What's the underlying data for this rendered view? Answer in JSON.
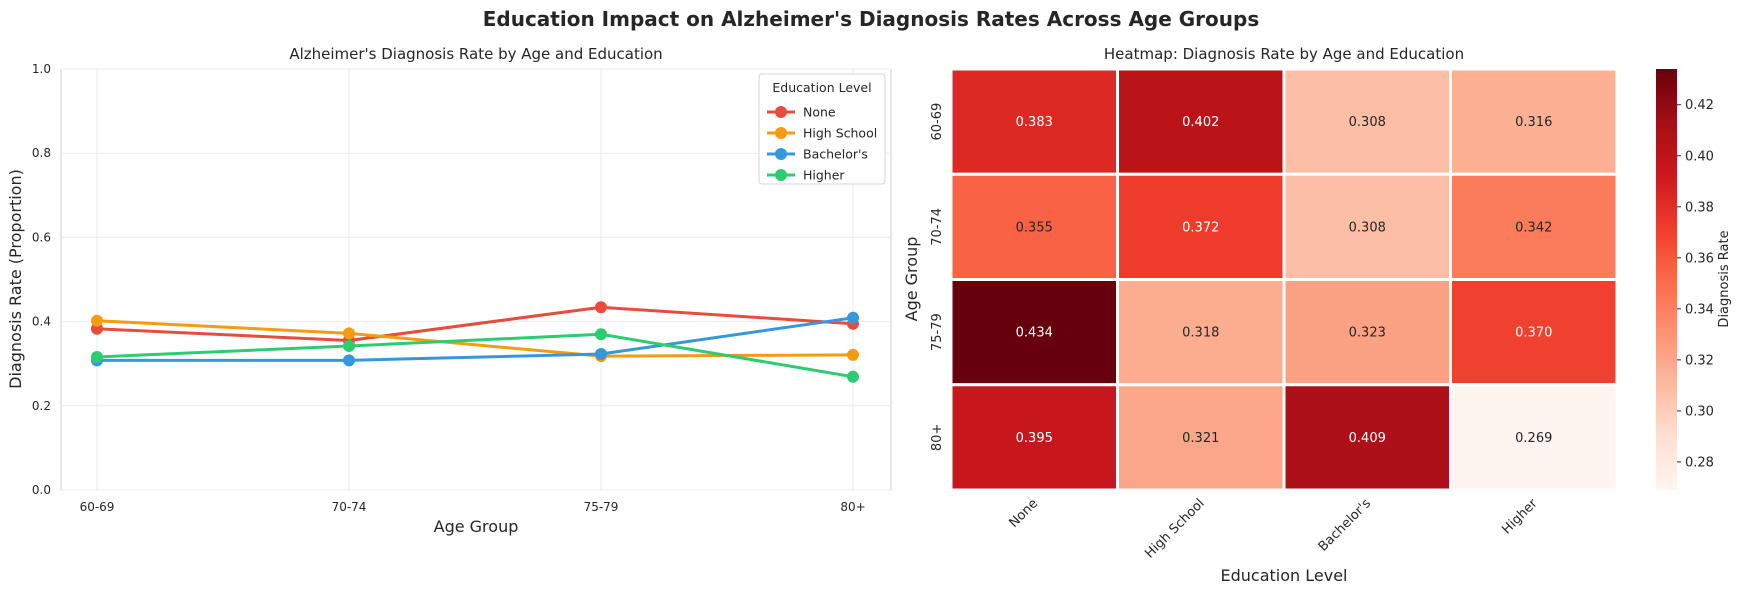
{
  "suptitle": "Education Impact on Alzheimer's Diagnosis Rates Across Age Groups",
  "chart_data": [
    {
      "type": "line",
      "title": "Alzheimer's Diagnosis Rate by Age and Education",
      "xlabel": "Age Group",
      "ylabel": "Diagnosis Rate (Proportion)",
      "categories": [
        "60-69",
        "70-74",
        "75-79",
        "80+"
      ],
      "ylim": [
        0,
        1
      ],
      "yticks": [
        "0.0",
        "0.2",
        "0.4",
        "0.6",
        "0.8",
        "1.0"
      ],
      "grid": true,
      "legend": {
        "title": "Education Level",
        "placement": "top-right"
      },
      "series": [
        {
          "name": "None",
          "color": "#e74c3c",
          "values": [
            0.383,
            0.355,
            0.434,
            0.395
          ]
        },
        {
          "name": "High School",
          "color": "#f39c12",
          "values": [
            0.402,
            0.372,
            0.318,
            0.321
          ]
        },
        {
          "name": "Bachelor's",
          "color": "#3498db",
          "values": [
            0.308,
            0.308,
            0.323,
            0.409
          ]
        },
        {
          "name": "Higher",
          "color": "#2ecc71",
          "values": [
            0.316,
            0.342,
            0.37,
            0.269
          ]
        }
      ]
    },
    {
      "type": "heatmap",
      "title": "Heatmap: Diagnosis Rate by Age and Education",
      "xlabel": "Education Level",
      "ylabel": "Age Group",
      "x_categories": [
        "None",
        "High School",
        "Bachelor's",
        "Higher"
      ],
      "y_categories": [
        "60-69",
        "70-74",
        "75-79",
        "80+"
      ],
      "values": [
        [
          0.383,
          0.402,
          0.308,
          0.316
        ],
        [
          0.355,
          0.372,
          0.308,
          0.342
        ],
        [
          0.434,
          0.318,
          0.323,
          0.37
        ],
        [
          0.395,
          0.321,
          0.409,
          0.269
        ]
      ],
      "value_labels": [
        [
          "0.383",
          "0.402",
          "0.308",
          "0.316"
        ],
        [
          "0.355",
          "0.372",
          "0.308",
          "0.342"
        ],
        [
          "0.434",
          "0.318",
          "0.323",
          "0.370"
        ],
        [
          "0.395",
          "0.321",
          "0.409",
          "0.269"
        ]
      ],
      "colormap": "Reds",
      "colorbar": {
        "label": "Diagnosis Rate",
        "range": [
          0.269,
          0.434
        ],
        "ticks": [
          0.28,
          0.3,
          0.32,
          0.34,
          0.36,
          0.38,
          0.4,
          0.42
        ],
        "tick_labels": [
          "0.28",
          "0.30",
          "0.32",
          "0.34",
          "0.36",
          "0.38",
          "0.40",
          "0.42"
        ]
      }
    }
  ]
}
